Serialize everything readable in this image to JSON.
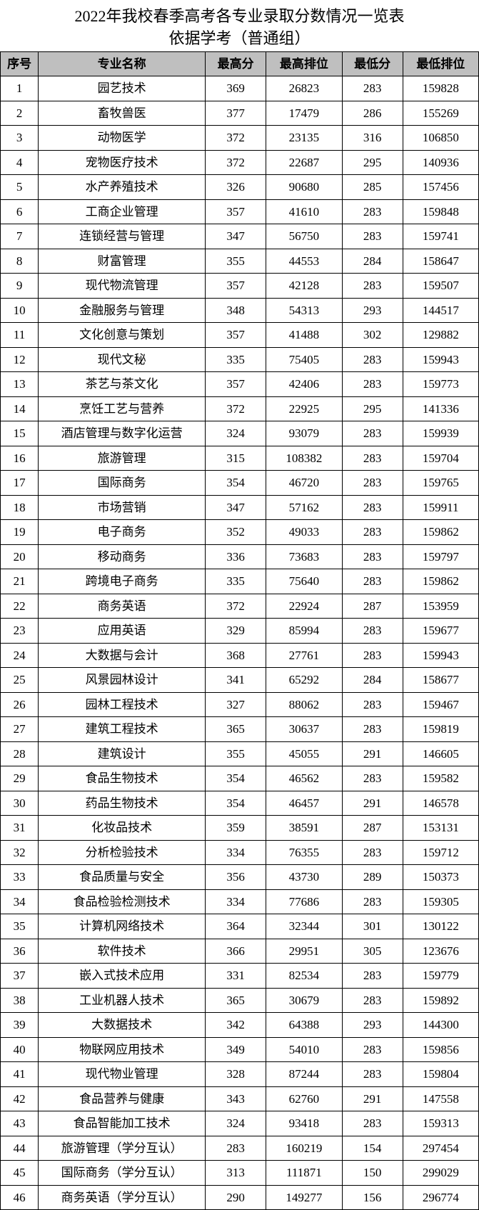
{
  "title_line1": "2022年我校春季高考各专业录取分数情况一览表",
  "title_line2": "依据学考（普通组）",
  "columns": [
    "序号",
    "专业名称",
    "最高分",
    "最高排位",
    "最低分",
    "最低排位"
  ],
  "rows": [
    [
      1,
      "园艺技术",
      369,
      26823,
      283,
      159828
    ],
    [
      2,
      "畜牧兽医",
      377,
      17479,
      286,
      155269
    ],
    [
      3,
      "动物医学",
      372,
      23135,
      316,
      106850
    ],
    [
      4,
      "宠物医疗技术",
      372,
      22687,
      295,
      140936
    ],
    [
      5,
      "水产养殖技术",
      326,
      90680,
      285,
      157456
    ],
    [
      6,
      "工商企业管理",
      357,
      41610,
      283,
      159848
    ],
    [
      7,
      "连锁经营与管理",
      347,
      56750,
      283,
      159741
    ],
    [
      8,
      "财富管理",
      355,
      44553,
      284,
      158647
    ],
    [
      9,
      "现代物流管理",
      357,
      42128,
      283,
      159507
    ],
    [
      10,
      "金融服务与管理",
      348,
      54313,
      293,
      144517
    ],
    [
      11,
      "文化创意与策划",
      357,
      41488,
      302,
      129882
    ],
    [
      12,
      "现代文秘",
      335,
      75405,
      283,
      159943
    ],
    [
      13,
      "茶艺与茶文化",
      357,
      42406,
      283,
      159773
    ],
    [
      14,
      "烹饪工艺与营养",
      372,
      22925,
      295,
      141336
    ],
    [
      15,
      "酒店管理与数字化运营",
      324,
      93079,
      283,
      159939
    ],
    [
      16,
      "旅游管理",
      315,
      108382,
      283,
      159704
    ],
    [
      17,
      "国际商务",
      354,
      46720,
      283,
      159765
    ],
    [
      18,
      "市场营销",
      347,
      57162,
      283,
      159911
    ],
    [
      19,
      "电子商务",
      352,
      49033,
      283,
      159862
    ],
    [
      20,
      "移动商务",
      336,
      73683,
      283,
      159797
    ],
    [
      21,
      "跨境电子商务",
      335,
      75640,
      283,
      159862
    ],
    [
      22,
      "商务英语",
      372,
      22924,
      287,
      153959
    ],
    [
      23,
      "应用英语",
      329,
      85994,
      283,
      159677
    ],
    [
      24,
      "大数据与会计",
      368,
      27761,
      283,
      159943
    ],
    [
      25,
      "风景园林设计",
      341,
      65292,
      284,
      158677
    ],
    [
      26,
      "园林工程技术",
      327,
      88062,
      283,
      159467
    ],
    [
      27,
      "建筑工程技术",
      365,
      30637,
      283,
      159819
    ],
    [
      28,
      "建筑设计",
      355,
      45055,
      291,
      146605
    ],
    [
      29,
      "食品生物技术",
      354,
      46562,
      283,
      159582
    ],
    [
      30,
      "药品生物技术",
      354,
      46457,
      291,
      146578
    ],
    [
      31,
      "化妆品技术",
      359,
      38591,
      287,
      153131
    ],
    [
      32,
      "分析检验技术",
      334,
      76355,
      283,
      159712
    ],
    [
      33,
      "食品质量与安全",
      356,
      43730,
      289,
      150373
    ],
    [
      34,
      "食品检验检测技术",
      334,
      77686,
      283,
      159305
    ],
    [
      35,
      "计算机网络技术",
      364,
      32344,
      301,
      130122
    ],
    [
      36,
      "软件技术",
      366,
      29951,
      305,
      123676
    ],
    [
      37,
      "嵌入式技术应用",
      331,
      82534,
      283,
      159779
    ],
    [
      38,
      "工业机器人技术",
      365,
      30679,
      283,
      159892
    ],
    [
      39,
      "大数据技术",
      342,
      64388,
      293,
      144300
    ],
    [
      40,
      "物联网应用技术",
      349,
      54010,
      283,
      159856
    ],
    [
      41,
      "现代物业管理",
      328,
      87244,
      283,
      159804
    ],
    [
      42,
      "食品营养与健康",
      343,
      62760,
      291,
      147558
    ],
    [
      43,
      "食品智能加工技术",
      324,
      93418,
      283,
      159313
    ],
    [
      44,
      "旅游管理（学分互认）",
      283,
      160219,
      154,
      297454
    ],
    [
      45,
      "国际商务（学分互认）",
      313,
      111871,
      150,
      299029
    ],
    [
      46,
      "商务英语（学分互认）",
      290,
      149277,
      156,
      296774
    ]
  ]
}
